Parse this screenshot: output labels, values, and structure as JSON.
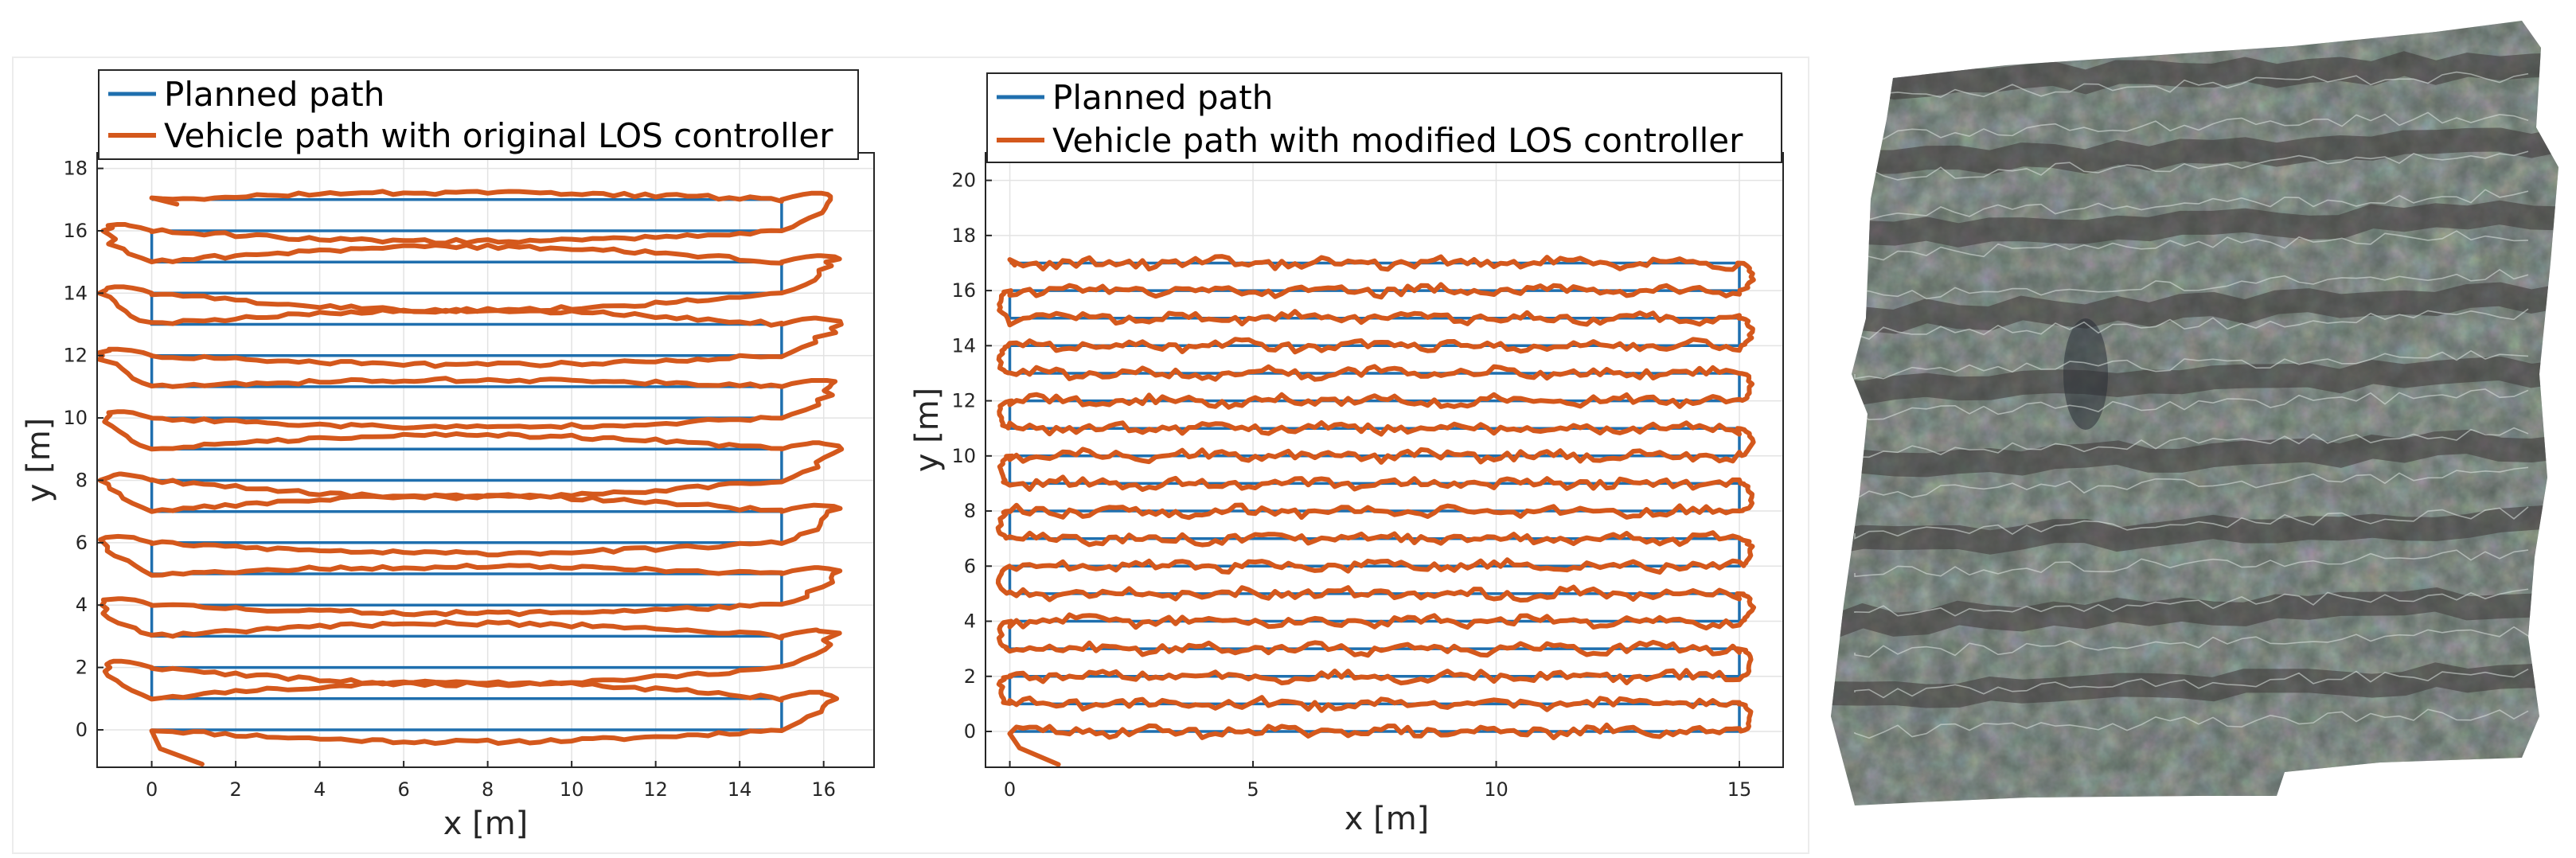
{
  "colors": {
    "planned": "#1f6fae",
    "vehicle": "#d4581c",
    "grid": "#e3e3e3",
    "axis": "#262626",
    "mosaic_base": "#5b6660",
    "mosaic_dark": "#3d3636",
    "mosaic_light": "#8a9c95"
  },
  "chart_data": [
    {
      "type": "line",
      "xlabel": "x [m]",
      "ylabel": "y [m]",
      "xlim": [
        -1.3,
        17.2
      ],
      "ylim": [
        -1.2,
        18.5
      ],
      "xticks": [
        0,
        2,
        4,
        6,
        8,
        10,
        12,
        14,
        16
      ],
      "yticks": [
        0,
        2,
        4,
        6,
        8,
        10,
        12,
        14,
        16,
        18
      ],
      "legend_position": "top-left",
      "grid": true,
      "series": [
        {
          "name": "Planned path",
          "lawnmower": {
            "x_start": 0,
            "x_end": 15,
            "rows": [
              0,
              1,
              2,
              3,
              4,
              5,
              6,
              7,
              8,
              9,
              10,
              11,
              12,
              13,
              14,
              15,
              16,
              17
            ]
          }
        },
        {
          "name": "Vehicle path with original LOS controller",
          "controller": "original",
          "start": [
            1.2,
            -1.1
          ],
          "turn_x_right": 16.2,
          "turn_x_left": -1.1
        }
      ]
    },
    {
      "type": "line",
      "xlabel": "x [m]",
      "ylabel": "y [m]",
      "xlim": [
        -0.5,
        15.9
      ],
      "ylim": [
        -1.3,
        21.0
      ],
      "xticks": [
        0,
        5,
        10,
        15
      ],
      "yticks": [
        0,
        2,
        4,
        6,
        8,
        10,
        12,
        14,
        16,
        18,
        20
      ],
      "legend_position": "top-left",
      "grid": true,
      "series": [
        {
          "name": "Planned path",
          "lawnmower": {
            "x_start": 0,
            "x_end": 15,
            "rows": [
              0,
              1,
              2,
              3,
              4,
              5,
              6,
              7,
              8,
              9,
              10,
              11,
              12,
              13,
              14,
              15,
              16,
              17
            ]
          }
        },
        {
          "name": "Vehicle path with modified LOS controller",
          "controller": "modified",
          "start": [
            1.0,
            -1.2
          ],
          "turn_x_right": 15.3,
          "turn_x_left": -0.3
        }
      ]
    }
  ]
}
